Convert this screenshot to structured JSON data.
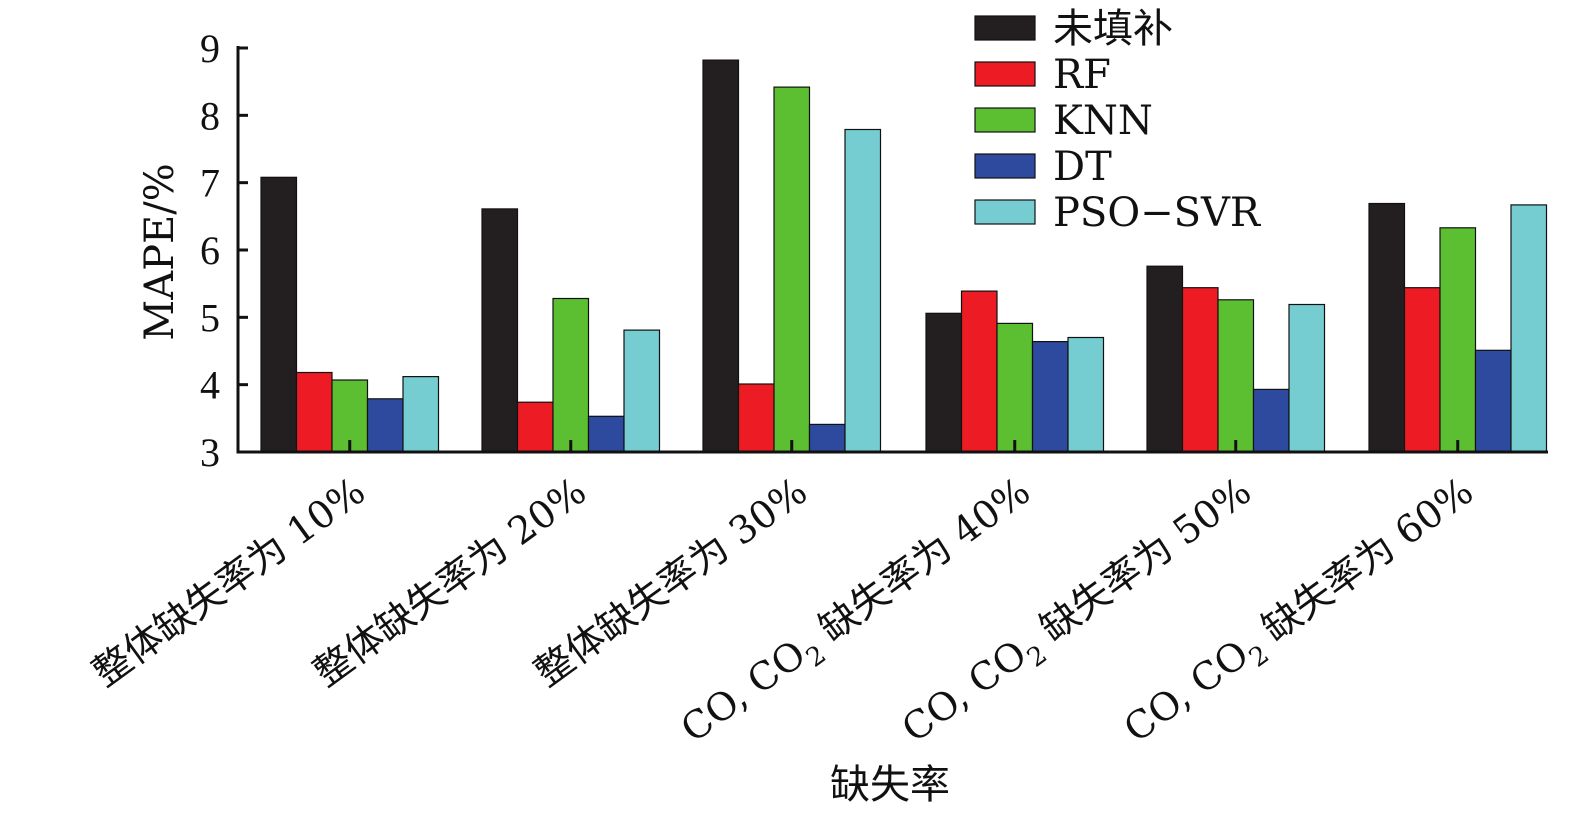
{
  "chart_data": {
    "type": "bar",
    "title": "",
    "xlabel": "缺失率",
    "ylabel": "MAPE/%",
    "ylim": [
      3,
      9
    ],
    "yticks": [
      "3",
      "4",
      "5",
      "6",
      "7",
      "8",
      "9"
    ],
    "grid": false,
    "legend_position": "top-right",
    "categories": [
      "整体缺失率为 10%",
      "整体缺失率为 20%",
      "整体缺失率为 30%",
      "CO, CO2 缺失率为 40%",
      "CO, CO2 缺失率为 50%",
      "CO, CO2 缺失率为 60%"
    ],
    "series": [
      {
        "name": "未填补",
        "color": "#231f20",
        "values": [
          7.08,
          6.61,
          8.82,
          5.06,
          5.76,
          6.69
        ]
      },
      {
        "name": "RF",
        "color": "#ed1c24",
        "values": [
          4.18,
          3.74,
          4.01,
          5.39,
          5.44,
          5.44
        ]
      },
      {
        "name": "KNN",
        "color": "#5cbf32",
        "values": [
          4.07,
          5.28,
          8.42,
          4.91,
          5.26,
          6.33
        ]
      },
      {
        "name": "DT",
        "color": "#2e4a9e",
        "values": [
          3.79,
          3.53,
          3.41,
          4.64,
          3.93,
          4.51
        ]
      },
      {
        "name": "PSO−SVR",
        "color": "#76cdd1",
        "values": [
          4.12,
          4.81,
          7.79,
          4.7,
          5.19,
          6.67
        ]
      }
    ]
  }
}
